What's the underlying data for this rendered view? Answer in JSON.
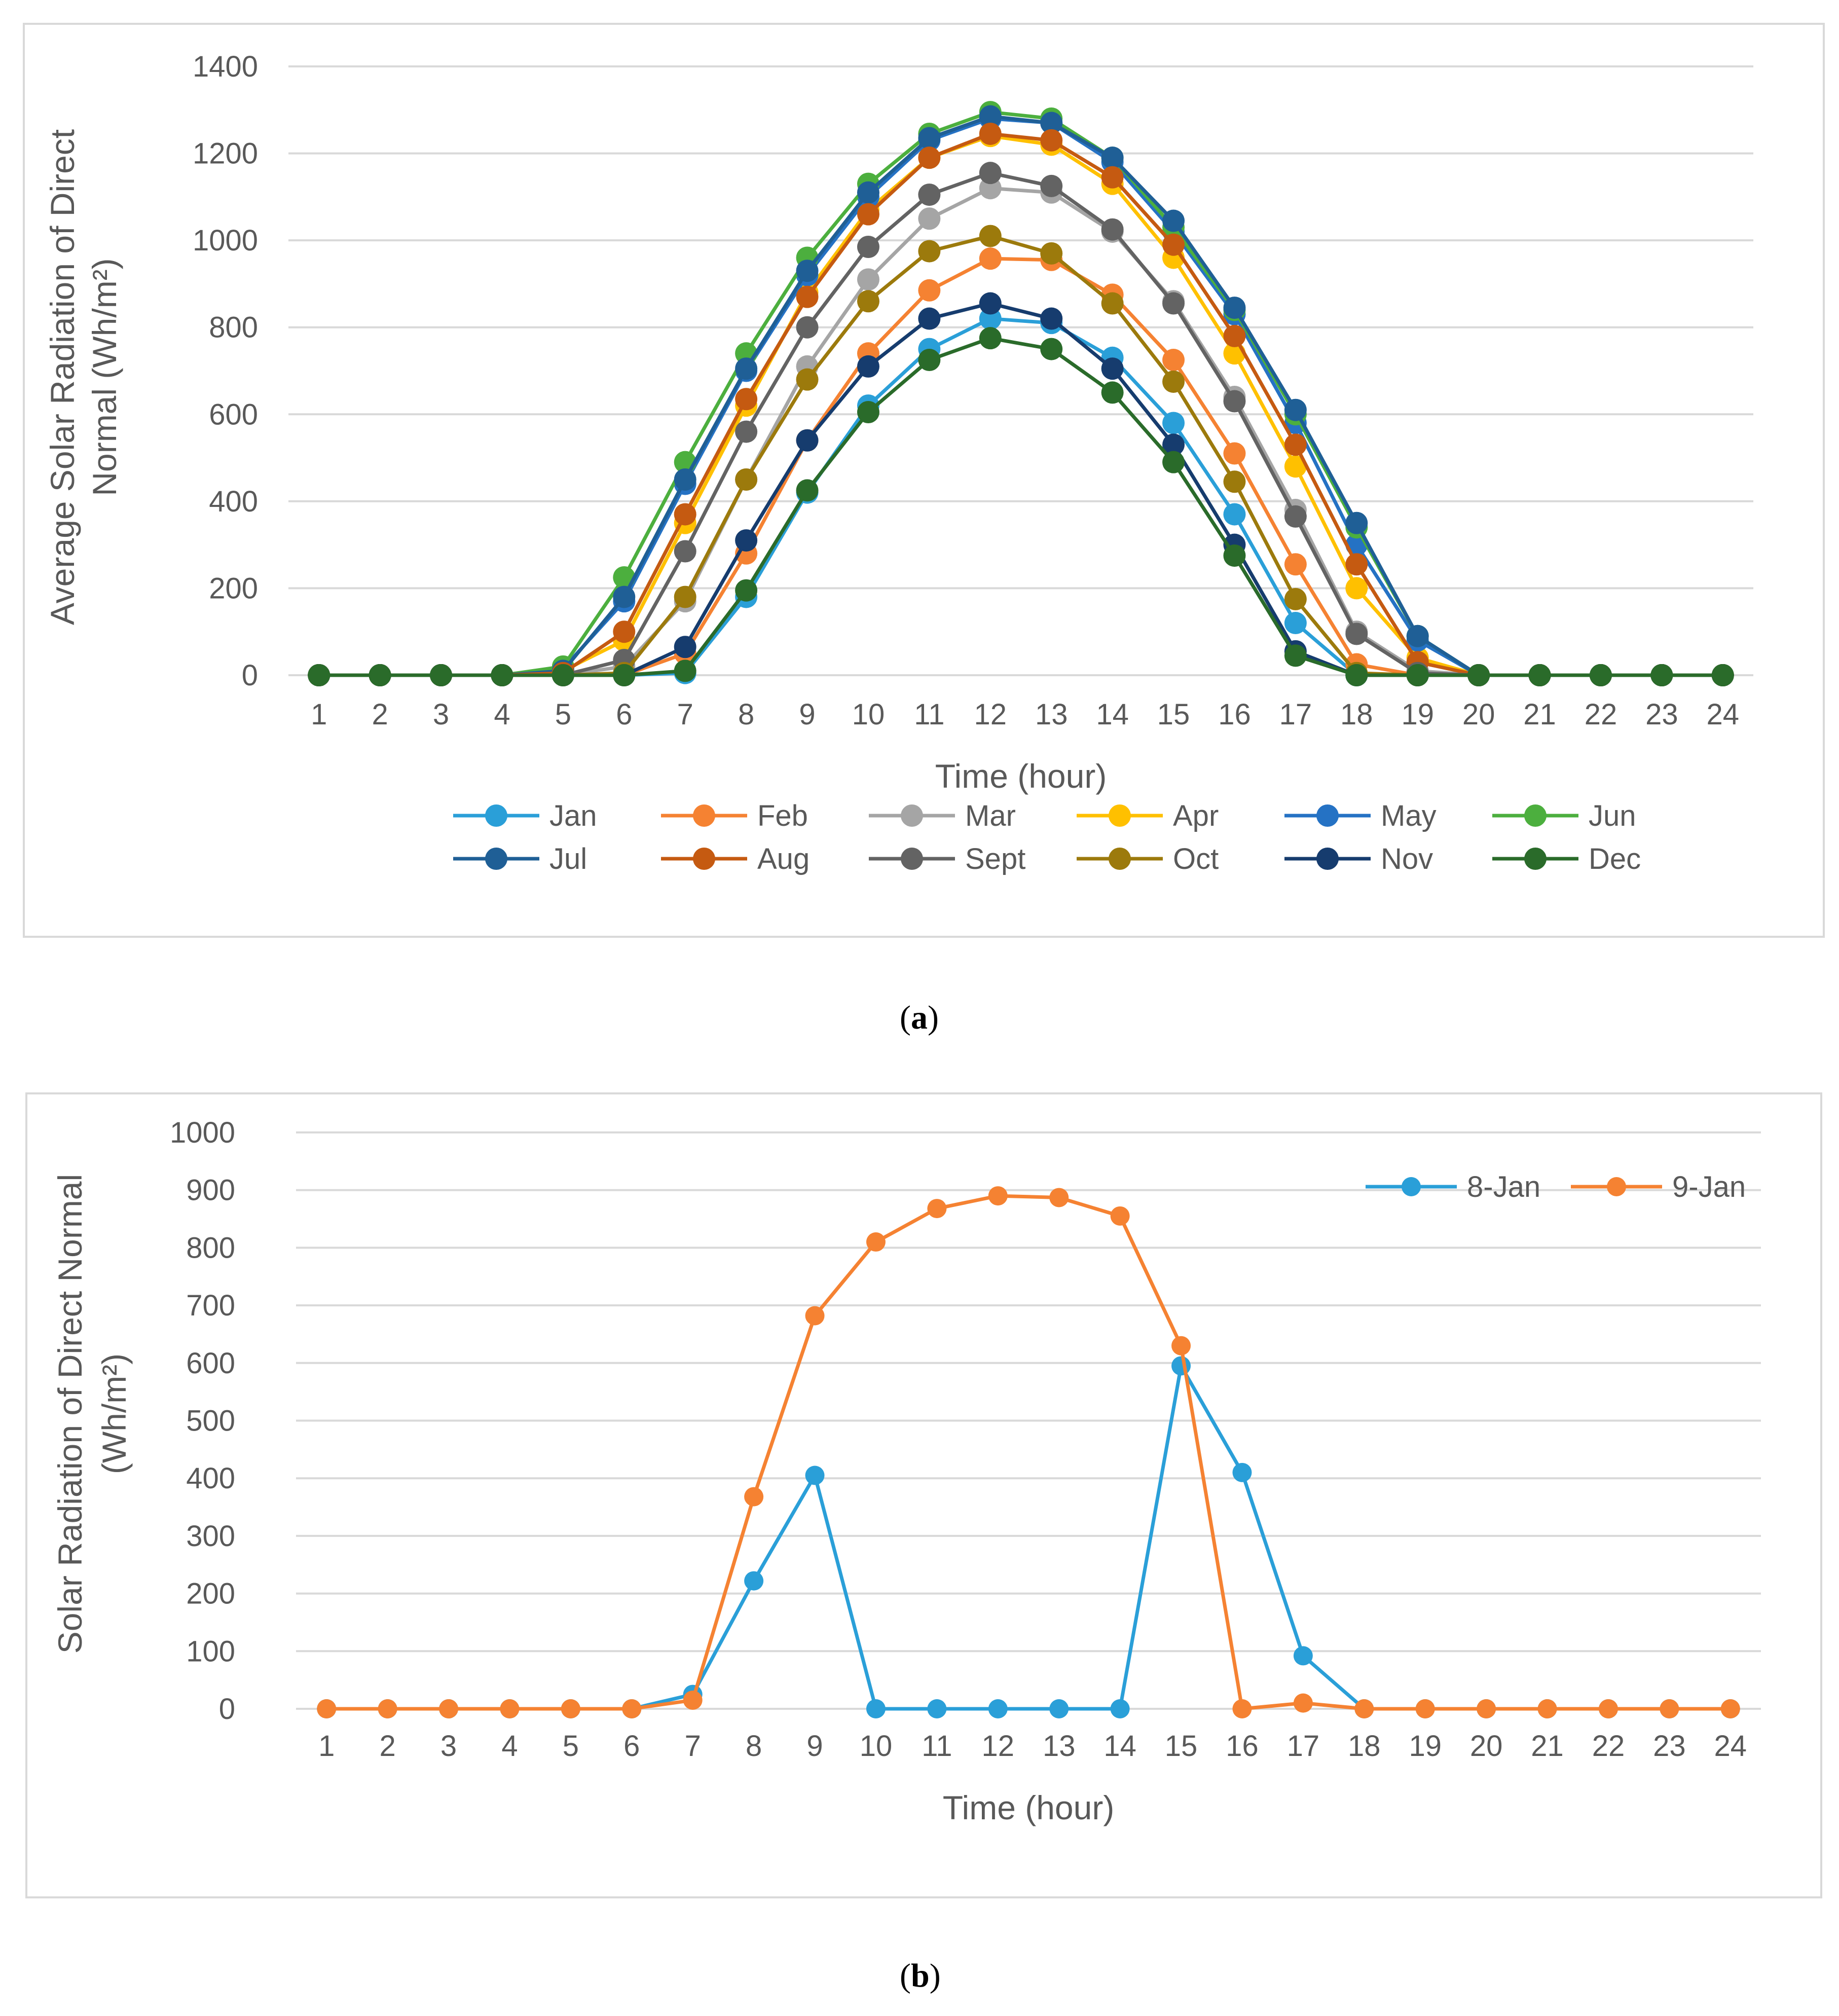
{
  "captions": {
    "a": "a",
    "b": "b"
  },
  "colors": {
    "grid": "#d9d9d9",
    "text": "#595959"
  },
  "chart_data": [
    {
      "id": "a",
      "type": "line",
      "xlabel": "Time (hour)",
      "ylabel_lines": [
        "Average Solar Radiation of Direct",
        "Normal (Wh/m²)"
      ],
      "x": [
        1,
        2,
        3,
        4,
        5,
        6,
        7,
        8,
        9,
        10,
        11,
        12,
        13,
        14,
        15,
        16,
        17,
        18,
        19,
        20,
        21,
        22,
        23,
        24
      ],
      "ylim": [
        0,
        1400
      ],
      "yticks": [
        0,
        200,
        400,
        600,
        800,
        1000,
        1200,
        1400
      ],
      "grid": true,
      "legend_position": "bottom",
      "series": [
        {
          "name": "Jan",
          "color": "#2a9fd8",
          "values": [
            0,
            0,
            0,
            0,
            0,
            0,
            5,
            180,
            420,
            620,
            750,
            820,
            810,
            730,
            580,
            370,
            120,
            0,
            0,
            0,
            0,
            0,
            0,
            0
          ]
        },
        {
          "name": "Feb",
          "color": "#f58232",
          "values": [
            0,
            0,
            0,
            0,
            0,
            0,
            50,
            280,
            540,
            740,
            885,
            958,
            955,
            875,
            725,
            510,
            255,
            25,
            0,
            0,
            0,
            0,
            0,
            0
          ]
        },
        {
          "name": "Mar",
          "color": "#a5a5a5",
          "values": [
            0,
            0,
            0,
            0,
            0,
            20,
            170,
            450,
            710,
            910,
            1050,
            1120,
            1110,
            1020,
            860,
            640,
            380,
            100,
            10,
            0,
            0,
            0,
            0,
            0
          ]
        },
        {
          "name": "Apr",
          "color": "#ffc000",
          "values": [
            0,
            0,
            0,
            0,
            10,
            80,
            350,
            620,
            880,
            1070,
            1190,
            1240,
            1220,
            1130,
            960,
            740,
            480,
            200,
            40,
            0,
            0,
            0,
            0,
            0
          ]
        },
        {
          "name": "May",
          "color": "#2572c4",
          "values": [
            0,
            0,
            0,
            0,
            15,
            170,
            440,
            700,
            920,
            1100,
            1230,
            1280,
            1270,
            1180,
            1020,
            830,
            580,
            300,
            80,
            0,
            0,
            0,
            0,
            0
          ]
        },
        {
          "name": "Jun",
          "color": "#4caf3e",
          "values": [
            0,
            0,
            0,
            0,
            20,
            225,
            490,
            740,
            960,
            1130,
            1245,
            1295,
            1280,
            1190,
            1030,
            840,
            600,
            340,
            90,
            0,
            0,
            0,
            0,
            0
          ]
        },
        {
          "name": "Jul",
          "color": "#1f5f96",
          "values": [
            0,
            0,
            0,
            0,
            10,
            180,
            450,
            705,
            930,
            1110,
            1235,
            1285,
            1270,
            1190,
            1045,
            845,
            610,
            350,
            90,
            0,
            0,
            0,
            0,
            0
          ]
        },
        {
          "name": "Aug",
          "color": "#c55a11",
          "values": [
            0,
            0,
            0,
            0,
            5,
            100,
            370,
            635,
            870,
            1060,
            1190,
            1245,
            1230,
            1145,
            990,
            780,
            530,
            255,
            30,
            0,
            0,
            0,
            0,
            0
          ]
        },
        {
          "name": "Sept",
          "color": "#636363",
          "values": [
            0,
            0,
            0,
            0,
            0,
            35,
            285,
            560,
            800,
            985,
            1105,
            1155,
            1125,
            1025,
            855,
            630,
            365,
            95,
            5,
            0,
            0,
            0,
            0,
            0
          ]
        },
        {
          "name": "Oct",
          "color": "#9c7a0c",
          "values": [
            0,
            0,
            0,
            0,
            0,
            5,
            180,
            450,
            680,
            860,
            975,
            1010,
            970,
            855,
            675,
            445,
            175,
            5,
            0,
            0,
            0,
            0,
            0,
            0
          ]
        },
        {
          "name": "Nov",
          "color": "#163c6e",
          "values": [
            0,
            0,
            0,
            0,
            0,
            0,
            65,
            310,
            540,
            710,
            820,
            855,
            820,
            705,
            530,
            300,
            55,
            0,
            0,
            0,
            0,
            0,
            0,
            0
          ]
        },
        {
          "name": "Dec",
          "color": "#2a6b2a",
          "values": [
            0,
            0,
            0,
            0,
            0,
            0,
            10,
            195,
            425,
            605,
            725,
            775,
            750,
            650,
            490,
            275,
            45,
            0,
            0,
            0,
            0,
            0,
            0,
            0
          ]
        }
      ]
    },
    {
      "id": "b",
      "type": "line",
      "xlabel": "Time (hour)",
      "ylabel_lines": [
        "Solar Radiation of Direct Normal",
        "(Wh/m²)"
      ],
      "x": [
        1,
        2,
        3,
        4,
        5,
        6,
        7,
        8,
        9,
        10,
        11,
        12,
        13,
        14,
        15,
        16,
        17,
        18,
        19,
        20,
        21,
        22,
        23,
        24
      ],
      "ylim": [
        0,
        1000
      ],
      "yticks": [
        0,
        100,
        200,
        300,
        400,
        500,
        600,
        700,
        800,
        900,
        1000
      ],
      "grid": true,
      "legend_position": "top-right",
      "series": [
        {
          "name": "8-Jan",
          "color": "#2a9fd8",
          "values": [
            0,
            0,
            0,
            0,
            0,
            0,
            25,
            222,
            405,
            0,
            0,
            0,
            0,
            0,
            595,
            410,
            92,
            0,
            0,
            0,
            0,
            0,
            0,
            0
          ]
        },
        {
          "name": "9-Jan",
          "color": "#f58232",
          "values": [
            0,
            0,
            0,
            0,
            0,
            0,
            15,
            368,
            682,
            810,
            868,
            890,
            887,
            855,
            630,
            0,
            10,
            0,
            0,
            0,
            0,
            0,
            0,
            0
          ]
        }
      ]
    }
  ]
}
